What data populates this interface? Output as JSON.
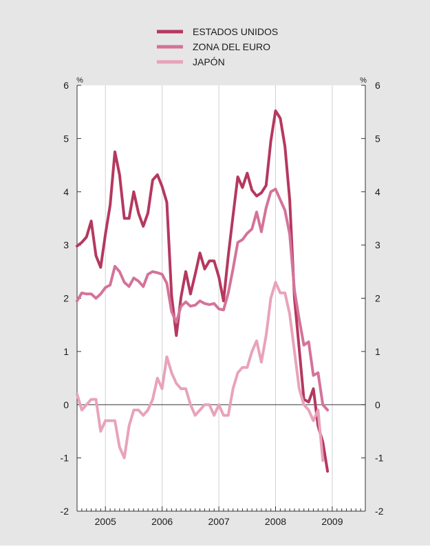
{
  "chart_data": {
    "type": "line",
    "title": "",
    "xlabel": "",
    "ylabel": "%",
    "ylabel_right": "%",
    "ylim": [
      -2,
      6
    ],
    "yticks": [
      -2,
      -1,
      0,
      1,
      2,
      3,
      4,
      5,
      6
    ],
    "xlim": [
      2004.5,
      2009.583
    ],
    "year_labels": [
      "2005",
      "2006",
      "2007",
      "2008",
      "2009"
    ],
    "year_label_positions": [
      2005.0,
      2006.0,
      2007.0,
      2008.0,
      2009.0
    ],
    "grid": "vertical year lines",
    "legend_position": "top-center",
    "colors": {
      "background": "#e6e6e6",
      "plot_area": "#ffffff",
      "estados_unidos": "#b5385f",
      "zona_del_euro": "#d4739a",
      "japon": "#e8a3ba"
    },
    "series": [
      {
        "name": "ESTADOS UNIDOS",
        "start": "2004-07",
        "values": [
          2.98,
          3.05,
          3.15,
          3.45,
          2.8,
          2.58,
          3.2,
          3.75,
          4.75,
          4.32,
          3.5,
          3.5,
          4.0,
          3.6,
          3.35,
          3.6,
          4.22,
          4.32,
          4.1,
          3.8,
          2.05,
          1.3,
          2.02,
          2.5,
          2.08,
          2.45,
          2.85,
          2.55,
          2.7,
          2.7,
          2.4,
          1.95,
          2.8,
          3.55,
          4.28,
          4.08,
          4.35,
          4.03,
          3.92,
          3.98,
          4.12,
          4.95,
          5.52,
          5.38,
          4.85,
          3.85,
          2.0,
          1.05,
          0.1,
          0.05,
          0.3,
          -0.4,
          -0.7,
          -1.25
        ]
      },
      {
        "name": "ZONA DEL EURO",
        "start": "2004-07",
        "values": [
          1.95,
          2.1,
          2.08,
          2.08,
          2.0,
          2.08,
          2.2,
          2.25,
          2.6,
          2.5,
          2.3,
          2.22,
          2.38,
          2.32,
          2.22,
          2.45,
          2.5,
          2.48,
          2.45,
          2.28,
          1.75,
          1.55,
          1.85,
          1.93,
          1.85,
          1.87,
          1.95,
          1.9,
          1.88,
          1.9,
          1.8,
          1.78,
          2.1,
          2.55,
          3.05,
          3.1,
          3.22,
          3.3,
          3.62,
          3.25,
          3.7,
          4.0,
          4.05,
          3.85,
          3.65,
          3.2,
          2.15,
          1.6,
          1.12,
          1.18,
          0.55,
          0.6,
          0.0,
          -0.1
        ]
      },
      {
        "name": "JAPÓN",
        "start": "2004-07",
        "values": [
          0.2,
          -0.1,
          0.0,
          0.1,
          0.1,
          -0.5,
          -0.3,
          -0.3,
          -0.3,
          -0.8,
          -1.0,
          -0.4,
          -0.1,
          -0.1,
          -0.2,
          -0.1,
          0.1,
          0.5,
          0.3,
          0.9,
          0.6,
          0.4,
          0.3,
          0.3,
          0.0,
          -0.2,
          -0.1,
          0.0,
          0.0,
          -0.2,
          0.0,
          -0.2,
          -0.2,
          0.3,
          0.6,
          0.7,
          0.7,
          1.0,
          1.2,
          0.8,
          1.3,
          2.0,
          2.3,
          2.1,
          2.1,
          1.7,
          1.0,
          0.3,
          0.0,
          -0.1,
          -0.3,
          -0.1,
          -1.05
        ]
      }
    ]
  }
}
